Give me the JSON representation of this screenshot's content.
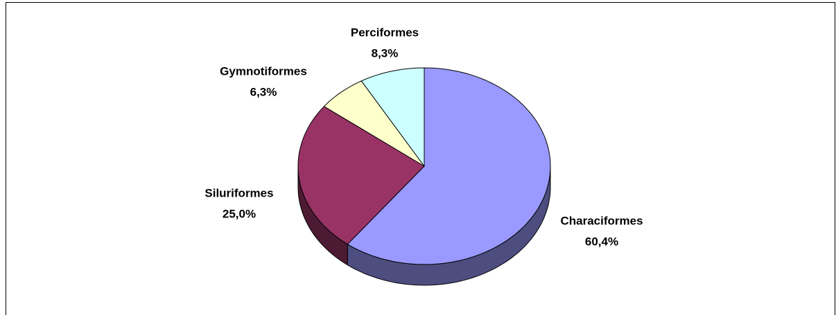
{
  "chart_data": {
    "type": "pie",
    "categories": [
      "Characiformes",
      "Siluriformes",
      "Gymnotiformes",
      "Perciformes"
    ],
    "values": [
      60.4,
      25.0,
      6.3,
      8.3
    ],
    "value_labels": [
      "60,4%",
      "25,0%",
      "6,3%",
      "8,3%"
    ],
    "colors": [
      "#9999ff",
      "#993366",
      "#ffffcc",
      "#ccffff"
    ],
    "side_colors": [
      "#4d4d80",
      "#4d1a33",
      "#808066",
      "#668080"
    ]
  }
}
